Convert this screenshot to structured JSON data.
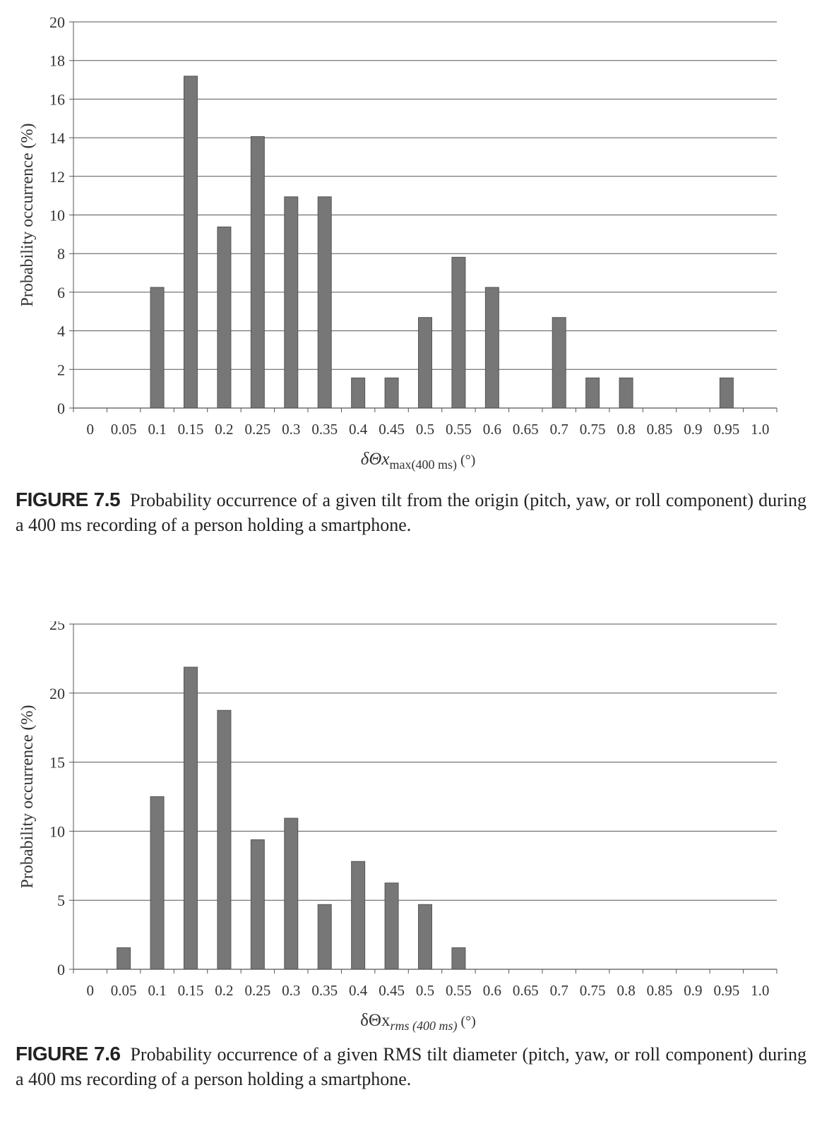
{
  "chart_data": [
    {
      "type": "bar",
      "ylabel": "Probability occurrence (%)",
      "xlabel": "δΘx",
      "xlabel_sub": "max(400 ms)",
      "xlabel_unit": " (°)",
      "xlabel_italic": true,
      "sub_italic": false,
      "ylim": [
        0,
        20
      ],
      "yticks": [
        0,
        2,
        4,
        6,
        8,
        10,
        12,
        14,
        16,
        18,
        20
      ],
      "grid": true,
      "categories": [
        "0",
        "0.05",
        "0.1",
        "0.15",
        "0.2",
        "0.25",
        "0.3",
        "0.35",
        "0.4",
        "0.45",
        "0.5",
        "0.55",
        "0.6",
        "0.65",
        "0.7",
        "0.75",
        "0.8",
        "0.85",
        "0.9",
        "0.95",
        "1.0"
      ],
      "values": [
        0,
        0,
        6.25,
        17.19,
        9.38,
        14.06,
        10.94,
        10.94,
        1.56,
        1.56,
        4.69,
        7.81,
        6.25,
        0,
        4.69,
        1.56,
        1.56,
        0,
        0,
        1.56,
        0
      ],
      "bar_color": "#777777"
    },
    {
      "type": "bar",
      "ylabel": "Probability occurrence (%)",
      "xlabel": "δΘx",
      "xlabel_sub": "rms (400 ms)",
      "xlabel_unit": " (°)",
      "xlabel_italic": false,
      "sub_italic": true,
      "ylim": [
        0,
        25
      ],
      "yticks": [
        0,
        5,
        10,
        15,
        20,
        25
      ],
      "grid": true,
      "categories": [
        "0",
        "0.05",
        "0.1",
        "0.15",
        "0.2",
        "0.25",
        "0.3",
        "0.35",
        "0.4",
        "0.45",
        "0.5",
        "0.55",
        "0.6",
        "0.65",
        "0.7",
        "0.75",
        "0.8",
        "0.85",
        "0.9",
        "0.95",
        "1.0"
      ],
      "values": [
        0,
        1.56,
        12.5,
        21.88,
        18.75,
        9.38,
        10.94,
        4.69,
        7.81,
        6.25,
        4.69,
        1.56,
        0,
        0,
        0,
        0,
        0,
        0,
        0,
        0,
        0
      ],
      "bar_color": "#777777"
    }
  ],
  "captions": [
    {
      "label": "FIGURE 7.5",
      "text": "Probability occurrence of a given tilt from the origin (pitch, yaw, or roll component) during a 400 ms recording of a person holding a smartphone."
    },
    {
      "label": "FIGURE 7.6",
      "text": "Probability occurrence of a given RMS tilt diameter (pitch, yaw, or roll component) during a 400 ms recording of a person holding a smartphone."
    }
  ]
}
